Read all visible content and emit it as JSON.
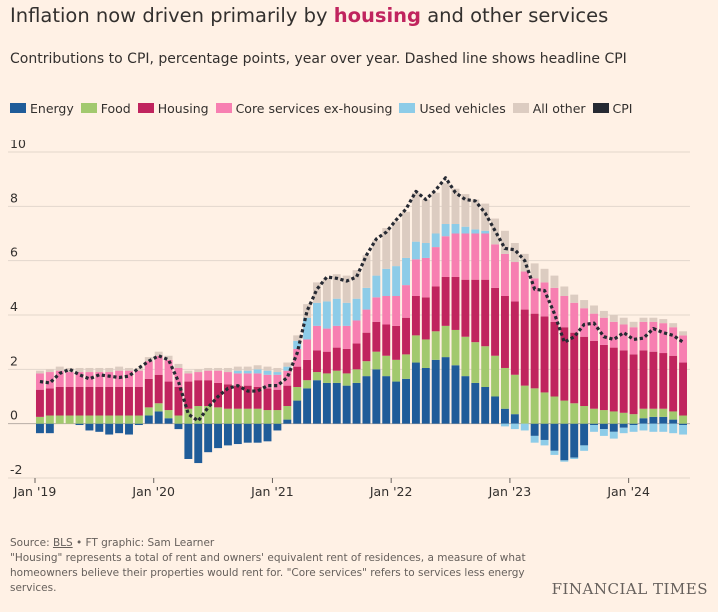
{
  "header": {
    "title_before": "Inflation now driven primarily by ",
    "title_highlight": "housing",
    "title_after": " and other services",
    "subtitle": "Contributions to CPI, percentage points, year over year. Dashed line shows headline CPI"
  },
  "legend": [
    {
      "label": "Energy",
      "color": "#1F5C99"
    },
    {
      "label": "Food",
      "color": "#A2C96E"
    },
    {
      "label": "Housing",
      "color": "#C0245E"
    },
    {
      "label": "Core services ex-housing",
      "color": "#F77FB1"
    },
    {
      "label": "Used vehicles",
      "color": "#8DCCE8"
    },
    {
      "label": "All other",
      "color": "#DCCCC1"
    },
    {
      "label": "CPI",
      "color": "#262A33"
    }
  ],
  "footer": {
    "source_prefix": "Source: ",
    "source_name": "BLS",
    "source_suffix": " • FT graphic: Sam Learner",
    "note": "\"Housing\" represents a total of rent and owners' equivalent rent of residences, a measure of what homeowners believe their properties would rent for. \"Core services\" refers to services less energy services.",
    "brand": "FINANCIAL TIMES"
  },
  "chart_data": {
    "type": "bar",
    "stacked": true,
    "title": "Inflation now driven primarily by housing and other services",
    "subtitle": "Contributions to CPI, percentage points, year over year. Dashed line shows headline CPI",
    "x_tick_labels": [
      "Jan '19",
      "Jan '20",
      "Jan '21",
      "Jan '22",
      "Jan '23",
      "Jan '24"
    ],
    "y_tick_labels": [
      "-2",
      "0",
      "2",
      "4",
      "6",
      "8",
      "10"
    ],
    "ylim": [
      -2,
      10
    ],
    "y_ticks": [
      -2,
      0,
      2,
      4,
      6,
      8,
      10
    ],
    "grid": true,
    "legend_position": "top",
    "categories": [
      "2019-01",
      "2019-02",
      "2019-03",
      "2019-04",
      "2019-05",
      "2019-06",
      "2019-07",
      "2019-08",
      "2019-09",
      "2019-10",
      "2019-11",
      "2019-12",
      "2020-01",
      "2020-02",
      "2020-03",
      "2020-04",
      "2020-05",
      "2020-06",
      "2020-07",
      "2020-08",
      "2020-09",
      "2020-10",
      "2020-11",
      "2020-12",
      "2021-01",
      "2021-02",
      "2021-03",
      "2021-04",
      "2021-05",
      "2021-06",
      "2021-07",
      "2021-08",
      "2021-09",
      "2021-10",
      "2021-11",
      "2021-12",
      "2022-01",
      "2022-02",
      "2022-03",
      "2022-04",
      "2022-05",
      "2022-06",
      "2022-07",
      "2022-08",
      "2022-09",
      "2022-10",
      "2022-11",
      "2022-12",
      "2023-01",
      "2023-02",
      "2023-03",
      "2023-04",
      "2023-05",
      "2023-06",
      "2023-07",
      "2023-08",
      "2023-09",
      "2023-10",
      "2023-11",
      "2023-12",
      "2024-01",
      "2024-02",
      "2024-03",
      "2024-04",
      "2024-05",
      "2024-06"
    ],
    "series": [
      {
        "name": "Energy",
        "color": "#1F5C99",
        "values": [
          -0.35,
          -0.35,
          0.0,
          0.0,
          -0.05,
          -0.25,
          -0.3,
          -0.4,
          -0.35,
          -0.4,
          -0.05,
          0.3,
          0.45,
          0.2,
          -0.2,
          -1.3,
          -1.45,
          -1.05,
          -0.9,
          -0.8,
          -0.75,
          -0.7,
          -0.7,
          -0.65,
          -0.25,
          0.15,
          0.85,
          1.3,
          1.6,
          1.5,
          1.5,
          1.4,
          1.5,
          1.75,
          2.0,
          1.75,
          1.55,
          1.65,
          2.25,
          2.05,
          2.35,
          2.45,
          2.15,
          1.75,
          1.5,
          1.35,
          1.0,
          0.55,
          0.35,
          0.0,
          -0.45,
          -0.6,
          -1.0,
          -1.35,
          -1.25,
          -0.8,
          -0.05,
          -0.2,
          -0.3,
          -0.15,
          -0.05,
          0.2,
          0.25,
          0.25,
          0.15,
          -0.05
        ]
      },
      {
        "name": "Food",
        "color": "#A2C96E",
        "values": [
          0.25,
          0.3,
          0.3,
          0.3,
          0.3,
          0.3,
          0.3,
          0.3,
          0.3,
          0.3,
          0.3,
          0.3,
          0.3,
          0.3,
          0.3,
          0.55,
          0.65,
          0.65,
          0.6,
          0.55,
          0.55,
          0.55,
          0.55,
          0.5,
          0.5,
          0.5,
          0.5,
          0.3,
          0.3,
          0.35,
          0.45,
          0.45,
          0.5,
          0.55,
          0.65,
          0.75,
          0.8,
          0.9,
          1.0,
          1.05,
          1.05,
          1.15,
          1.3,
          1.45,
          1.5,
          1.5,
          1.5,
          1.5,
          1.45,
          1.4,
          1.3,
          1.15,
          1.0,
          0.85,
          0.75,
          0.65,
          0.55,
          0.5,
          0.45,
          0.4,
          0.35,
          0.35,
          0.3,
          0.3,
          0.3,
          0.3
        ]
      },
      {
        "name": "Housing",
        "color": "#C0245E",
        "values": [
          1.0,
          1.0,
          1.05,
          1.05,
          1.05,
          1.05,
          1.05,
          1.05,
          1.05,
          1.05,
          1.05,
          1.05,
          1.05,
          1.05,
          1.05,
          1.0,
          0.95,
          0.95,
          0.9,
          0.9,
          0.85,
          0.85,
          0.8,
          0.8,
          0.75,
          0.75,
          0.75,
          0.75,
          0.8,
          0.8,
          0.85,
          0.9,
          0.95,
          1.05,
          1.1,
          1.15,
          1.25,
          1.35,
          1.45,
          1.55,
          1.65,
          1.8,
          1.95,
          2.1,
          2.3,
          2.45,
          2.5,
          2.65,
          2.7,
          2.8,
          2.75,
          2.8,
          2.75,
          2.7,
          2.6,
          2.55,
          2.5,
          2.4,
          2.35,
          2.3,
          2.2,
          2.15,
          2.1,
          2.05,
          2.05,
          1.95
        ]
      },
      {
        "name": "Core services ex-housing",
        "color": "#F77FB1",
        "values": [
          0.6,
          0.6,
          0.6,
          0.55,
          0.55,
          0.55,
          0.55,
          0.55,
          0.6,
          0.6,
          0.6,
          0.65,
          0.7,
          0.8,
          0.7,
          0.3,
          0.3,
          0.35,
          0.45,
          0.45,
          0.45,
          0.45,
          0.5,
          0.5,
          0.55,
          0.55,
          0.65,
          0.75,
          0.9,
          0.85,
          0.8,
          0.85,
          0.85,
          0.85,
          0.9,
          1.05,
          1.1,
          1.2,
          1.35,
          1.45,
          1.45,
          1.5,
          1.6,
          1.7,
          1.7,
          1.7,
          1.6,
          1.55,
          1.45,
          1.4,
          1.3,
          1.25,
          1.25,
          1.15,
          1.1,
          1.05,
          1.0,
          1.0,
          0.95,
          0.95,
          1.0,
          1.05,
          1.1,
          1.1,
          1.05,
          1.0
        ]
      },
      {
        "name": "Used vehicles",
        "color": "#8DCCE8",
        "values": [
          0.0,
          0.0,
          0.0,
          0.0,
          0.0,
          0.0,
          0.0,
          0.0,
          0.0,
          0.0,
          0.0,
          0.0,
          0.0,
          0.0,
          0.0,
          0.0,
          0.0,
          0.0,
          0.0,
          0.0,
          0.1,
          0.1,
          0.15,
          0.15,
          0.1,
          0.15,
          0.3,
          0.8,
          0.85,
          1.0,
          1.0,
          0.85,
          0.8,
          0.8,
          0.8,
          1.0,
          1.1,
          1.0,
          0.65,
          0.55,
          0.5,
          0.45,
          0.35,
          0.25,
          0.15,
          0.1,
          0.0,
          -0.1,
          -0.2,
          -0.25,
          -0.25,
          -0.2,
          -0.15,
          -0.05,
          -0.05,
          -0.2,
          -0.25,
          -0.25,
          -0.25,
          -0.2,
          -0.25,
          -0.25,
          -0.3,
          -0.3,
          -0.35,
          -0.35
        ]
      },
      {
        "name": "All other",
        "color": "#DCCCC1",
        "values": [
          0.1,
          0.1,
          0.15,
          0.15,
          0.15,
          0.15,
          0.15,
          0.15,
          0.15,
          0.1,
          0.1,
          0.15,
          0.15,
          0.15,
          0.15,
          0.1,
          0.1,
          0.1,
          0.1,
          0.15,
          0.15,
          0.15,
          0.15,
          0.15,
          0.15,
          0.15,
          0.2,
          0.5,
          0.75,
          0.85,
          0.9,
          1.0,
          1.05,
          1.2,
          1.3,
          1.5,
          1.65,
          1.7,
          1.8,
          1.6,
          1.5,
          1.5,
          1.3,
          1.2,
          1.1,
          1.0,
          0.95,
          0.85,
          0.7,
          0.65,
          0.55,
          0.5,
          0.45,
          0.35,
          0.3,
          0.3,
          0.3,
          0.25,
          0.25,
          0.25,
          0.2,
          0.15,
          0.15,
          0.15,
          0.15,
          0.15
        ]
      },
      {
        "name": "CPI",
        "type": "line",
        "color": "#262A33",
        "values": [
          1.55,
          1.5,
          1.85,
          2.0,
          1.8,
          1.65,
          1.8,
          1.75,
          1.7,
          1.75,
          2.05,
          2.3,
          2.5,
          2.35,
          1.55,
          0.35,
          0.1,
          0.6,
          1.0,
          1.3,
          1.4,
          1.2,
          1.2,
          1.4,
          1.4,
          1.7,
          2.6,
          4.15,
          4.95,
          5.4,
          5.35,
          5.25,
          5.4,
          6.2,
          6.8,
          7.05,
          7.5,
          7.9,
          8.55,
          8.25,
          8.6,
          9.05,
          8.5,
          8.25,
          8.2,
          7.75,
          7.1,
          6.45,
          6.4,
          6.0,
          4.95,
          4.9,
          4.05,
          3.0,
          3.2,
          3.65,
          3.7,
          3.2,
          3.1,
          3.35,
          3.1,
          3.15,
          3.5,
          3.35,
          3.25,
          3.0
        ]
      }
    ]
  }
}
